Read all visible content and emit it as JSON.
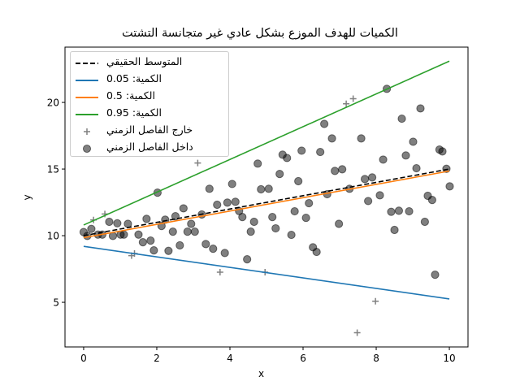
{
  "chart_data": {
    "type": "scatter",
    "title": "الكميات للهدف الموزع بشكل عادي غير متجانسة التشتت",
    "xlabel": "x",
    "ylabel": "y",
    "xlim": [
      -0.51,
      10.51
    ],
    "ylim": [
      1.65,
      24.15
    ],
    "xticks": [
      0,
      2,
      4,
      6,
      8,
      10
    ],
    "yticks": [
      5,
      10,
      15,
      20
    ],
    "grid": false,
    "legend_position": "upper left",
    "lines": [
      {
        "name": "المتوسط الحقيقي",
        "color": "#000000",
        "style": "dashed",
        "x": [
          0,
          10
        ],
        "y": [
          10.0,
          15.0
        ]
      },
      {
        "name": "الكمية: 0.05",
        "color": "#1f77b4",
        "style": "solid",
        "x": [
          0,
          10
        ],
        "y": [
          9.2,
          5.25
        ]
      },
      {
        "name": "الكمية: 0.5",
        "color": "#ff7f0e",
        "style": "solid",
        "x": [
          0,
          10
        ],
        "y": [
          9.85,
          14.85
        ]
      },
      {
        "name": "الكمية: 0.95",
        "color": "#2ca02c",
        "style": "solid",
        "x": [
          0,
          10
        ],
        "y": [
          10.8,
          23.1
        ]
      }
    ],
    "scatter_series": [
      {
        "name": "خارج الفاصل الزمني",
        "marker": "plus",
        "color": "#808080",
        "points": [
          [
            0.27,
            11.18
          ],
          [
            0.58,
            11.63
          ],
          [
            1.31,
            8.5
          ],
          [
            1.39,
            8.66
          ],
          [
            3.12,
            15.45
          ],
          [
            3.73,
            7.26
          ],
          [
            4.96,
            7.26
          ],
          [
            7.18,
            19.9
          ],
          [
            7.37,
            20.28
          ],
          [
            7.98,
            5.08
          ],
          [
            7.48,
            2.72
          ]
        ]
      },
      {
        "name": "داخل الفاصل الزمني",
        "marker": "circle",
        "color": "#000000",
        "alpha": 0.5,
        "points": [
          [
            0.0,
            10.27
          ],
          [
            0.1,
            9.98
          ],
          [
            0.21,
            10.51
          ],
          [
            0.39,
            10.08
          ],
          [
            0.51,
            10.08
          ],
          [
            0.7,
            11.04
          ],
          [
            0.8,
            9.98
          ],
          [
            0.92,
            10.93
          ],
          [
            1.01,
            10.08
          ],
          [
            1.1,
            10.08
          ],
          [
            1.21,
            10.89
          ],
          [
            1.5,
            10.08
          ],
          [
            1.62,
            9.51
          ],
          [
            1.72,
            11.26
          ],
          [
            1.83,
            9.63
          ],
          [
            1.92,
            8.9
          ],
          [
            2.02,
            13.23
          ],
          [
            2.13,
            10.73
          ],
          [
            2.23,
            11.2
          ],
          [
            2.32,
            8.86
          ],
          [
            2.44,
            10.3
          ],
          [
            2.51,
            11.46
          ],
          [
            2.63,
            9.27
          ],
          [
            2.73,
            12.05
          ],
          [
            2.84,
            10.3
          ],
          [
            2.94,
            10.89
          ],
          [
            3.04,
            10.3
          ],
          [
            3.23,
            11.59
          ],
          [
            3.34,
            9.37
          ],
          [
            3.44,
            13.52
          ],
          [
            3.54,
            9.02
          ],
          [
            3.65,
            12.32
          ],
          [
            3.86,
            8.7
          ],
          [
            3.93,
            12.48
          ],
          [
            4.06,
            13.88
          ],
          [
            4.15,
            12.54
          ],
          [
            4.25,
            11.85
          ],
          [
            4.34,
            11.4
          ],
          [
            4.47,
            8.23
          ],
          [
            4.57,
            10.3
          ],
          [
            4.66,
            11.04
          ],
          [
            4.76,
            15.41
          ],
          [
            4.85,
            13.48
          ],
          [
            5.06,
            13.52
          ],
          [
            5.16,
            11.4
          ],
          [
            5.25,
            10.55
          ],
          [
            5.36,
            14.63
          ],
          [
            5.44,
            16.08
          ],
          [
            5.56,
            15.83
          ],
          [
            5.68,
            10.06
          ],
          [
            5.77,
            11.83
          ],
          [
            5.87,
            14.09
          ],
          [
            5.96,
            16.38
          ],
          [
            6.08,
            11.34
          ],
          [
            6.16,
            12.44
          ],
          [
            6.27,
            9.13
          ],
          [
            6.37,
            8.78
          ],
          [
            6.47,
            16.28
          ],
          [
            6.58,
            18.39
          ],
          [
            6.66,
            13.11
          ],
          [
            6.79,
            17.3
          ],
          [
            6.87,
            14.86
          ],
          [
            6.98,
            10.89
          ],
          [
            7.07,
            14.98
          ],
          [
            7.27,
            13.52
          ],
          [
            7.59,
            17.3
          ],
          [
            7.69,
            14.25
          ],
          [
            7.78,
            12.6
          ],
          [
            7.89,
            14.37
          ],
          [
            8.1,
            13.03
          ],
          [
            8.19,
            15.71
          ],
          [
            8.29,
            21.02
          ],
          [
            8.41,
            11.79
          ],
          [
            8.5,
            10.43
          ],
          [
            8.62,
            11.87
          ],
          [
            8.7,
            18.78
          ],
          [
            8.81,
            16.02
          ],
          [
            8.9,
            11.83
          ],
          [
            9.01,
            17.05
          ],
          [
            9.1,
            15.06
          ],
          [
            9.21,
            19.55
          ],
          [
            9.33,
            11.04
          ],
          [
            9.41,
            12.99
          ],
          [
            9.53,
            12.68
          ],
          [
            9.61,
            7.07
          ],
          [
            9.73,
            16.46
          ],
          [
            9.81,
            16.32
          ],
          [
            9.92,
            15.02
          ],
          [
            10.01,
            13.7
          ]
        ]
      }
    ]
  },
  "legend": {
    "items": [
      {
        "label": "المتوسط الحقيقي",
        "kind": "dashed-line",
        "color": "#000000"
      },
      {
        "label": "الكمية: 0.05",
        "kind": "line",
        "color": "#1f77b4"
      },
      {
        "label": "الكمية: 0.5",
        "kind": "line",
        "color": "#ff7f0e"
      },
      {
        "label": "الكمية: 0.95",
        "kind": "line",
        "color": "#2ca02c"
      },
      {
        "label": "خارج الفاصل الزمني",
        "kind": "plus",
        "color": "#808080"
      },
      {
        "label": "داخل الفاصل الزمني",
        "kind": "circle",
        "color": "#808080"
      }
    ]
  }
}
